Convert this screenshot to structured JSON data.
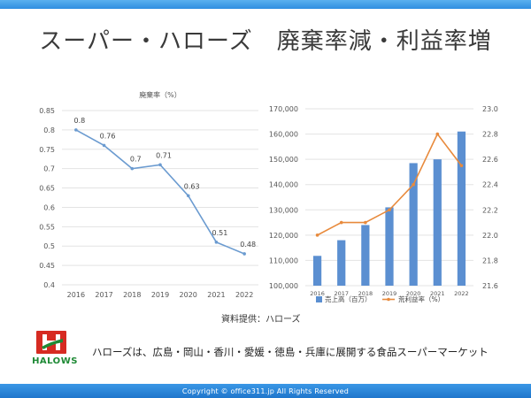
{
  "slide": {
    "title": "スーパー・ハローズ　廃棄率減・利益率増",
    "source": "資料提供：ハローズ",
    "description": "ハローズは、広島・岡山・香川・愛媛・徳島・兵庫に展開する食品スーパーマーケット",
    "copyright": "Copyright © office311.jp All Rights Reserved",
    "logo_text": "HALOWS",
    "logo_letter": "H",
    "colors": {
      "band": "#2f8ee0",
      "logo_red": "#d62b22",
      "logo_green": "#1f8a36"
    }
  },
  "chart_data": [
    {
      "type": "line",
      "title": "廃棄率（%）",
      "x": [
        "2016",
        "2017",
        "2018",
        "2019",
        "2020",
        "2021",
        "2022"
      ],
      "series": [
        {
          "values": [
            0.8,
            0.76,
            0.7,
            0.71,
            0.63,
            0.51,
            0.48
          ],
          "color": "#6b9bd0"
        }
      ],
      "data_labels": [
        "0.8",
        "0.76",
        "0.7",
        "0.71",
        "0.63",
        "0.51",
        "0.48"
      ],
      "ylim": [
        0.4,
        0.85
      ],
      "yticks": [
        "0.4",
        "0.45",
        "0.5",
        "0.55",
        "0.6",
        "0.65",
        "0.7",
        "0.75",
        "0.8",
        "0.85"
      ],
      "grid": true
    },
    {
      "type": "bar",
      "categories": [
        "2016",
        "2017",
        "2018",
        "2019",
        "2020",
        "2021",
        "2022"
      ],
      "series": [
        {
          "name": "売上高（百万）",
          "type": "bar",
          "axis": "left",
          "color": "#5b8fd1",
          "values": [
            111800,
            118000,
            124000,
            131000,
            148500,
            150000,
            161000
          ]
        },
        {
          "name": "荒利益率（%）",
          "type": "line",
          "axis": "right",
          "color": "#e88a3c",
          "values": [
            22.0,
            22.1,
            22.1,
            22.2,
            22.4,
            22.8,
            22.55
          ]
        }
      ],
      "ylim_left": [
        100000,
        170000
      ],
      "yticks_left": [
        "100,000",
        "110,000",
        "120,000",
        "130,000",
        "140,000",
        "150,000",
        "160,000",
        "170,000"
      ],
      "ylim_right": [
        21.6,
        23.0
      ],
      "yticks_right": [
        "21.6",
        "21.8",
        "22.0",
        "22.2",
        "22.4",
        "22.6",
        "22.8",
        "23.0"
      ],
      "legend": "bottom",
      "grid": true
    }
  ]
}
